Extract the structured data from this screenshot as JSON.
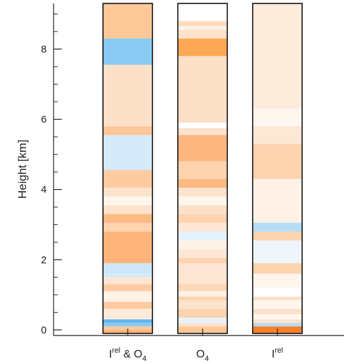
{
  "chart_data": {
    "type": "heatmap",
    "title": "",
    "ylabel": "Height [km]",
    "ylim": [
      -0.1,
      9.3
    ],
    "yticks": [
      0,
      2,
      4,
      6,
      8
    ],
    "ytick_labels": [
      "0",
      "2",
      "4",
      "6",
      "8"
    ],
    "categories": [
      {
        "base": "I",
        "sup": "rel",
        "tail": " & O",
        "sub": "4"
      },
      {
        "base": "O",
        "sup": "",
        "tail": "",
        "sub": "4"
      },
      {
        "base": "I",
        "sup": "rel",
        "tail": "",
        "sub": ""
      }
    ],
    "series": [
      {
        "column": 0,
        "layers": [
          {
            "y0": 8.3,
            "y1": 9.3,
            "color": "#fdc898"
          },
          {
            "y0": 7.55,
            "y1": 8.3,
            "color": "#8acbf4"
          },
          {
            "y0": 5.8,
            "y1": 7.55,
            "color": "#fde0c8"
          },
          {
            "y0": 5.55,
            "y1": 5.8,
            "color": "#fdc79a"
          },
          {
            "y0": 4.55,
            "y1": 5.55,
            "color": "#d6ebfa"
          },
          {
            "y0": 4.05,
            "y1": 4.55,
            "color": "#fdcba0"
          },
          {
            "y0": 3.8,
            "y1": 4.05,
            "color": "#fde2cc"
          },
          {
            "y0": 3.55,
            "y1": 3.8,
            "color": "#fef5ec"
          },
          {
            "y0": 3.3,
            "y1": 3.55,
            "color": "#fde2cc"
          },
          {
            "y0": 3.05,
            "y1": 3.3,
            "color": "#fcb982"
          },
          {
            "y0": 2.8,
            "y1": 3.05,
            "color": "#fdd3b0"
          },
          {
            "y0": 1.9,
            "y1": 2.8,
            "color": "#fcb47a"
          },
          {
            "y0": 1.6,
            "y1": 1.9,
            "color": "#cde6f8"
          },
          {
            "y0": 1.5,
            "y1": 1.6,
            "color": "#d6ebfa"
          },
          {
            "y0": 1.3,
            "y1": 1.5,
            "color": "#fde6d4"
          },
          {
            "y0": 1.1,
            "y1": 1.3,
            "color": "#fdcba0"
          },
          {
            "y0": 0.8,
            "y1": 1.1,
            "color": "#fef1e6"
          },
          {
            "y0": 0.6,
            "y1": 0.8,
            "color": "#fdcaa0"
          },
          {
            "y0": 0.3,
            "y1": 0.6,
            "color": "#fdeada"
          },
          {
            "y0": 0.2,
            "y1": 0.3,
            "color": "#63b4ee"
          },
          {
            "y0": 0.1,
            "y1": 0.2,
            "color": "#8acbf4"
          },
          {
            "y0": 0.0,
            "y1": 0.1,
            "color": "#fdc898"
          },
          {
            "y0": -0.1,
            "y1": 0.0,
            "color": "#fcb47a"
          }
        ]
      },
      {
        "column": 1,
        "layers": [
          {
            "y0": 8.8,
            "y1": 9.3,
            "color": "#ffffff"
          },
          {
            "y0": 8.65,
            "y1": 8.8,
            "color": "#fddcbe"
          },
          {
            "y0": 8.55,
            "y1": 8.65,
            "color": "#fef1e6"
          },
          {
            "y0": 8.3,
            "y1": 8.55,
            "color": "#fde2cc"
          },
          {
            "y0": 7.8,
            "y1": 8.3,
            "color": "#fca854"
          },
          {
            "y0": 5.9,
            "y1": 7.8,
            "color": "#fde0c8"
          },
          {
            "y0": 5.75,
            "y1": 5.9,
            "color": "#ffffff"
          },
          {
            "y0": 5.55,
            "y1": 5.75,
            "color": "#fde2cc"
          },
          {
            "y0": 4.8,
            "y1": 5.55,
            "color": "#fcb87e"
          },
          {
            "y0": 4.3,
            "y1": 4.8,
            "color": "#fdd3b0"
          },
          {
            "y0": 4.05,
            "y1": 4.3,
            "color": "#fcb982"
          },
          {
            "y0": 3.8,
            "y1": 4.05,
            "color": "#fde2cc"
          },
          {
            "y0": 3.55,
            "y1": 3.8,
            "color": "#fef5ec"
          },
          {
            "y0": 3.3,
            "y1": 3.55,
            "color": "#fde0c8"
          },
          {
            "y0": 3.05,
            "y1": 3.3,
            "color": "#fdd3b0"
          },
          {
            "y0": 2.8,
            "y1": 3.05,
            "color": "#fde6d4"
          },
          {
            "y0": 2.55,
            "y1": 2.8,
            "color": "#e6f2fb"
          },
          {
            "y0": 2.3,
            "y1": 2.55,
            "color": "#fef1e6"
          },
          {
            "y0": 2.05,
            "y1": 2.3,
            "color": "#fde6d4"
          },
          {
            "y0": 1.9,
            "y1": 2.05,
            "color": "#fdd3b0"
          },
          {
            "y0": 1.3,
            "y1": 1.9,
            "color": "#fde6d4"
          },
          {
            "y0": 1.1,
            "y1": 1.3,
            "color": "#fdd8b8"
          },
          {
            "y0": 0.95,
            "y1": 1.1,
            "color": "#fef1e6"
          },
          {
            "y0": 0.85,
            "y1": 0.95,
            "color": "#fdd3b0"
          },
          {
            "y0": 0.6,
            "y1": 0.85,
            "color": "#fde2cc"
          },
          {
            "y0": 0.35,
            "y1": 0.6,
            "color": "#fdd3b0"
          },
          {
            "y0": 0.2,
            "y1": 0.35,
            "color": "#e6f2fb"
          },
          {
            "y0": 0.1,
            "y1": 0.2,
            "color": "#fde2cc"
          },
          {
            "y0": -0.1,
            "y1": 0.1,
            "color": "#fdc898"
          }
        ]
      },
      {
        "column": 2,
        "layers": [
          {
            "y0": 6.3,
            "y1": 9.3,
            "color": "#fdebdc"
          },
          {
            "y0": 5.8,
            "y1": 6.3,
            "color": "#fef7f0"
          },
          {
            "y0": 5.3,
            "y1": 5.8,
            "color": "#fde8d6"
          },
          {
            "y0": 4.3,
            "y1": 5.3,
            "color": "#fdd3b0"
          },
          {
            "y0": 3.05,
            "y1": 4.3,
            "color": "#fef1e6"
          },
          {
            "y0": 2.8,
            "y1": 3.05,
            "color": "#b6dcf6"
          },
          {
            "y0": 2.55,
            "y1": 2.8,
            "color": "#fdd3b0"
          },
          {
            "y0": 1.9,
            "y1": 2.55,
            "color": "#eef6fc"
          },
          {
            "y0": 1.6,
            "y1": 1.9,
            "color": "#fdd3b0"
          },
          {
            "y0": 1.2,
            "y1": 1.6,
            "color": "#fef5ec"
          },
          {
            "y0": 0.95,
            "y1": 1.2,
            "color": "#ffffff"
          },
          {
            "y0": 0.85,
            "y1": 0.95,
            "color": "#fde0c8"
          },
          {
            "y0": 0.6,
            "y1": 0.85,
            "color": "#fef5ec"
          },
          {
            "y0": 0.45,
            "y1": 0.6,
            "color": "#fde0c8"
          },
          {
            "y0": 0.3,
            "y1": 0.45,
            "color": "#fef7f0"
          },
          {
            "y0": 0.2,
            "y1": 0.3,
            "color": "#fde2cc"
          },
          {
            "y0": 0.1,
            "y1": 0.2,
            "color": "#b6dcf6"
          },
          {
            "y0": -0.1,
            "y1": 0.1,
            "color": "#f7802a"
          }
        ]
      }
    ]
  }
}
